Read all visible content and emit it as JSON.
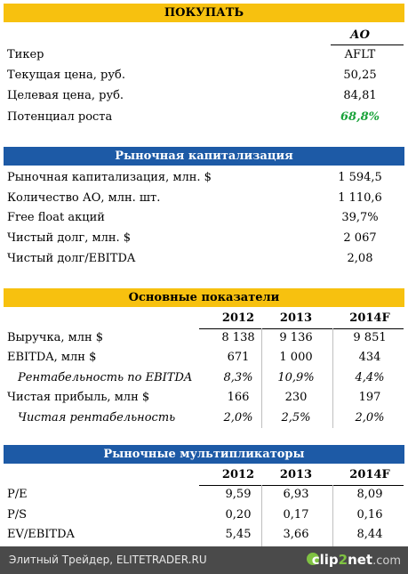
{
  "section1": {
    "title": "ПОКУПАТЬ",
    "col_header": "АО",
    "rows": [
      {
        "label": "Тикер",
        "value": "AFLT"
      },
      {
        "label": "Текущая цена, руб.",
        "value": "50,25"
      },
      {
        "label": "Целевая цена, руб.",
        "value": "84,81"
      },
      {
        "label": "Потенциал роста",
        "value": "68,8%"
      }
    ],
    "highlight_color": "#1aa33a"
  },
  "section2": {
    "title": "Рыночная капитализация",
    "rows": [
      {
        "label": "Рыночная капитализация, млн. $",
        "value": "1 594,5"
      },
      {
        "label": "Количество АО, млн. шт.",
        "value": "1 110,6"
      },
      {
        "label": "Free float акций",
        "value": "39,7%"
      },
      {
        "label": "Чистый долг, млн. $",
        "value": "2 067"
      },
      {
        "label": "Чистый долг/EBITDA",
        "value": "2,08"
      }
    ]
  },
  "section3": {
    "title": "Основные показатели",
    "years": [
      "2012",
      "2013",
      "2014F"
    ],
    "rows": [
      {
        "label": "Выручка, млн $",
        "values": [
          "8 138",
          "9 136",
          "9 851"
        ]
      },
      {
        "label": "EBITDA, млн $",
        "values": [
          "671",
          "1 000",
          "434"
        ]
      },
      {
        "label": "Рентабельность по EBITDA",
        "values": [
          "8,3%",
          "10,9%",
          "4,4%"
        ]
      },
      {
        "label": "Чистая прибыль, млн $",
        "values": [
          "166",
          "230",
          "197"
        ]
      },
      {
        "label": "Чистая рентабельность",
        "values": [
          "2,0%",
          "2,5%",
          "2,0%"
        ]
      }
    ]
  },
  "section4": {
    "title": "Рыночные мультипликаторы",
    "years": [
      "2012",
      "2013",
      "2014F"
    ],
    "rows": [
      {
        "label": "P/E",
        "values": [
          "9,59",
          "6,93",
          "8,09"
        ]
      },
      {
        "label": "P/S",
        "values": [
          "0,20",
          "0,17",
          "0,16"
        ]
      },
      {
        "label": "EV/EBITDA",
        "values": [
          "5,45",
          "3,66",
          "8,44"
        ]
      }
    ]
  },
  "footer": {
    "source": "Элитный Трейдер, ELITETRADER.RU",
    "logo_part1": "clip",
    "logo_part2": "2",
    "logo_part3": "net",
    "logo_part4": ".com"
  },
  "colors": {
    "yellow_band": "#f7c10f",
    "blue_band": "#1d5aa6"
  }
}
